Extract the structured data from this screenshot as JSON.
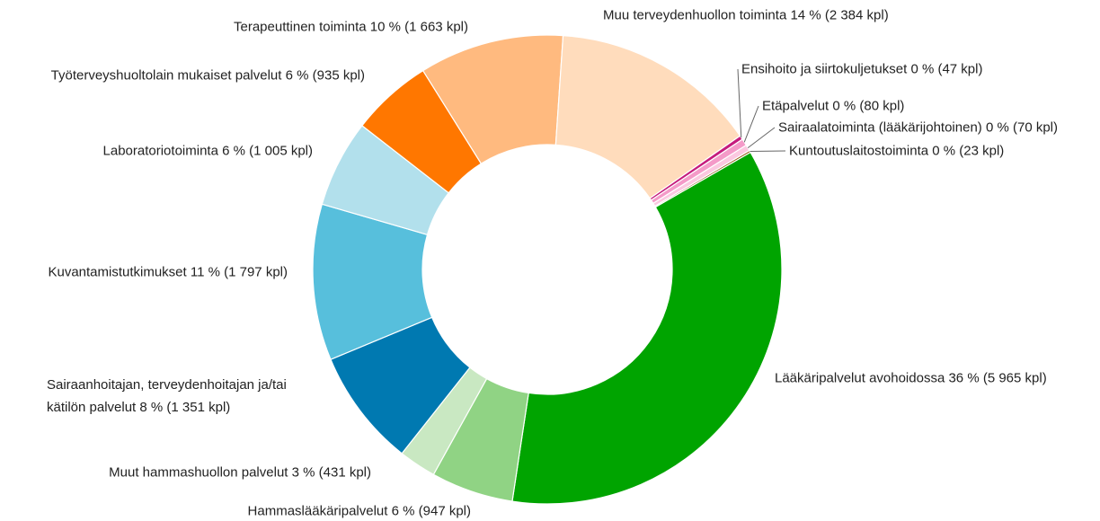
{
  "chart_data": {
    "type": "donut",
    "categories": [
      "Lääkäripalvelut avohoidossa",
      "Hammaslääkäripalvelut",
      "Muut hammashuollon palvelut",
      "Sairaanhoitajan, terveydenhoitajan ja/tai kätilön palvelut",
      "Kuvantamistutkimukset",
      "Laboratoriotoiminta",
      "Työterveyshuoltolain mukaiset palvelut",
      "Terapeuttinen toiminta",
      "Muu terveydenhuollon toiminta",
      "Ensihoito ja siirtokuljetukset",
      "Etäpalvelut",
      "Sairaalatoiminta (lääkärijohtoinen)",
      "Kuntoutuslaitostoiminta"
    ],
    "values": [
      5965,
      947,
      431,
      1351,
      1797,
      1005,
      935,
      1663,
      2384,
      47,
      80,
      70,
      23
    ],
    "value_labels": [
      "36 % (5 965 kpl)",
      "6 % (947 kpl)",
      "3 % (431 kpl)",
      "8 % (1 351 kpl)",
      "11 % (1 797 kpl)",
      "6 % (1 005 kpl)",
      "6 % (935 kpl)",
      "10 % (1 663 kpl)",
      "14 % (2 384 kpl)",
      "0 % (47 kpl)",
      "0 % (80 kpl)",
      "0 % (70 kpl)",
      "0 % (23 kpl)"
    ],
    "colors": [
      "#00a400",
      "#90d384",
      "#c9e8c2",
      "#0079b1",
      "#57bfdc",
      "#b2e0ec",
      "#ff7700",
      "#ffba7f",
      "#ffdcbc",
      "#c51b7d",
      "#f49ac8",
      "#fbc8e0",
      "#8c510a"
    ]
  }
}
